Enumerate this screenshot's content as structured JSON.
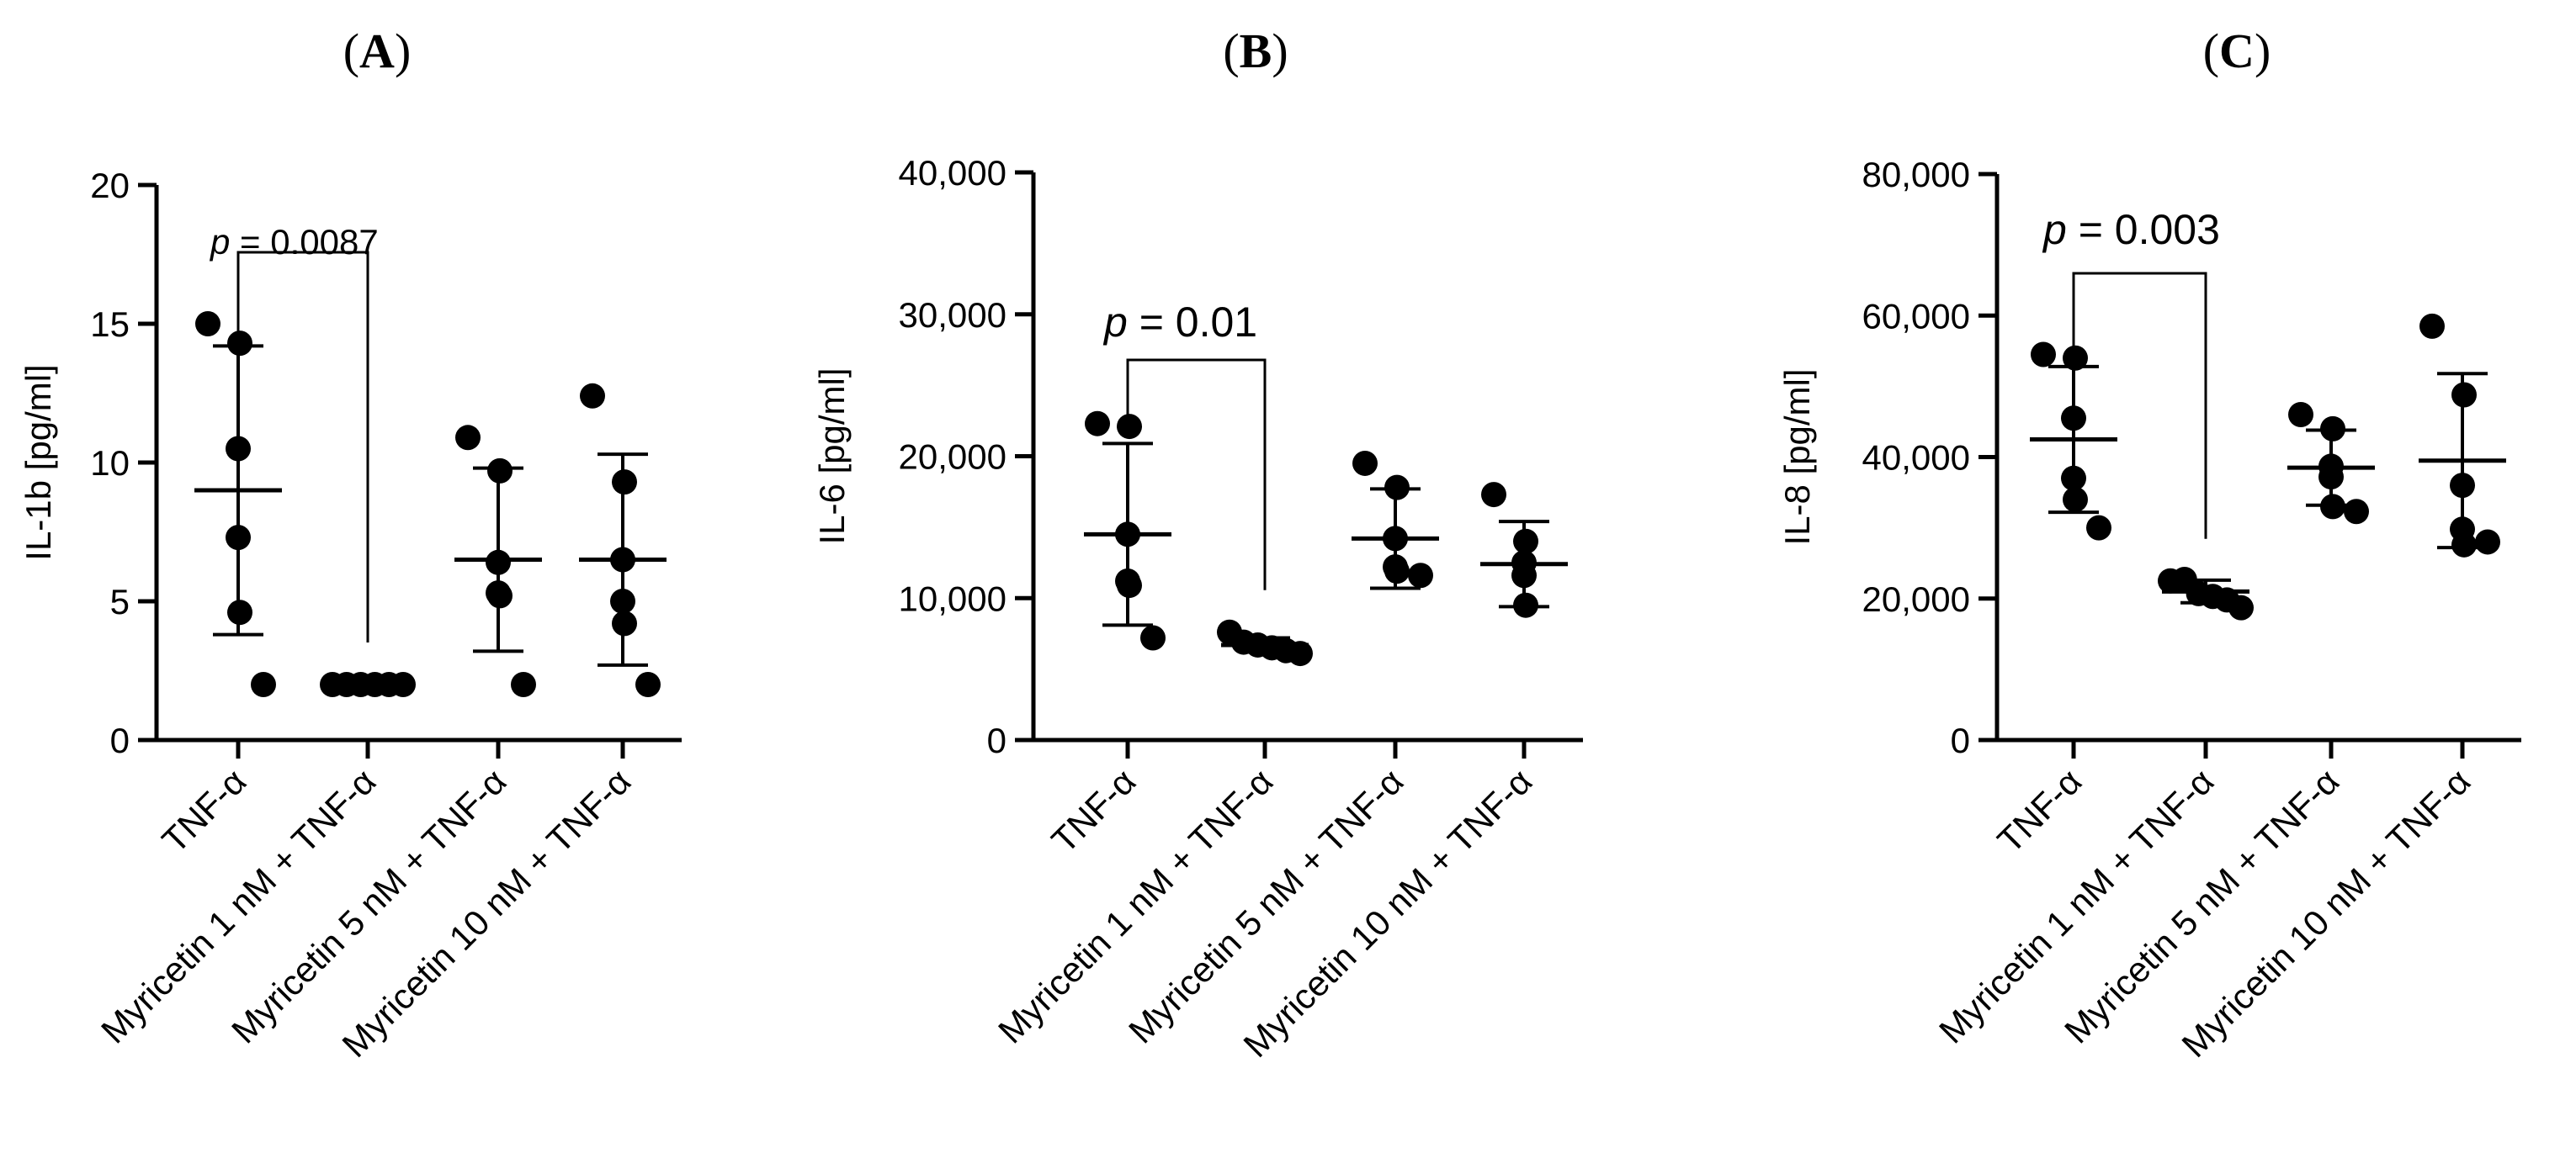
{
  "chart_data": [
    {
      "type": "scatter",
      "panel_label": "A",
      "ylabel": "IL-1b [pg/ml]",
      "ylim": [
        0,
        20
      ],
      "yticks": [
        "0",
        "5",
        "10",
        "15",
        "20"
      ],
      "categories": [
        "TNF-α",
        "Myricetin 1 nM + TNF-α",
        "Myricetin 5 nM + TNF-α",
        "Myricetin 10 nM + TNF-α"
      ],
      "points": [
        [
          15.0,
          14.3,
          10.5,
          7.3,
          4.6,
          2.0
        ],
        [
          2.0,
          2.0,
          2.0,
          2.0,
          2.0,
          2.0
        ],
        [
          10.9,
          9.7,
          6.4,
          5.3,
          5.2,
          2.0
        ],
        [
          12.4,
          9.3,
          6.5,
          5.0,
          4.2,
          2.0
        ]
      ],
      "mean": [
        9.0,
        2.0,
        6.5,
        6.5
      ],
      "sd": [
        5.2,
        0,
        3.3,
        3.8
      ],
      "annotation": {
        "text": "= 0.0087",
        "p": "p",
        "from": 0,
        "to": 1
      }
    },
    {
      "type": "scatter",
      "panel_label": "B",
      "ylabel": "IL-6 [pg/ml]",
      "ylim": [
        0,
        40000
      ],
      "yticks": [
        "0",
        "10,000",
        "20,000",
        "30,000",
        "40,000"
      ],
      "categories": [
        "TNF-α",
        "Myricetin 1 nM + TNF-α",
        "Myricetin 5 nM + TNF-α",
        "Myricetin 10 nM + TNF-α"
      ],
      "points": [
        [
          22300,
          22100,
          14500,
          11200,
          10900,
          7200
        ],
        [
          7600,
          6900,
          6700,
          6500,
          6300,
          6100
        ],
        [
          19500,
          17800,
          14200,
          12200,
          11900,
          11600
        ],
        [
          17300,
          14000,
          12500,
          11600,
          9500
        ]
      ],
      "mean": [
        14500,
        6700,
        14200,
        12400
      ],
      "sd": [
        6400,
        500,
        3500,
        3000
      ],
      "annotation": {
        "text": "= 0.01",
        "p": "p",
        "from": 0,
        "to": 1
      }
    },
    {
      "type": "scatter",
      "panel_label": "C",
      "ylabel": "IL-8 [pg/ml]",
      "ylim": [
        0,
        80000
      ],
      "yticks": [
        "0",
        "20,000",
        "40,000",
        "60,000",
        "80,000"
      ],
      "categories": [
        "TNF-α",
        "Myricetin 1 nM + TNF-α",
        "Myricetin 5 nM + TNF-α",
        "Myricetin 10 nM + TNF-α"
      ],
      "points": [
        [
          54500,
          54000,
          45500,
          37000,
          34000,
          30000
        ],
        [
          22500,
          22700,
          20700,
          20300,
          19800,
          18700
        ],
        [
          46000,
          44000,
          38700,
          37200,
          33000,
          32300
        ],
        [
          58500,
          48800,
          36000,
          29800,
          27600,
          28000
        ]
      ],
      "mean": [
        42500,
        21000,
        38500,
        39500
      ],
      "sd": [
        10300,
        1600,
        5300,
        12300
      ],
      "annotation": {
        "text": "= 0.003",
        "p": "p",
        "from": 0,
        "to": 1
      }
    }
  ]
}
